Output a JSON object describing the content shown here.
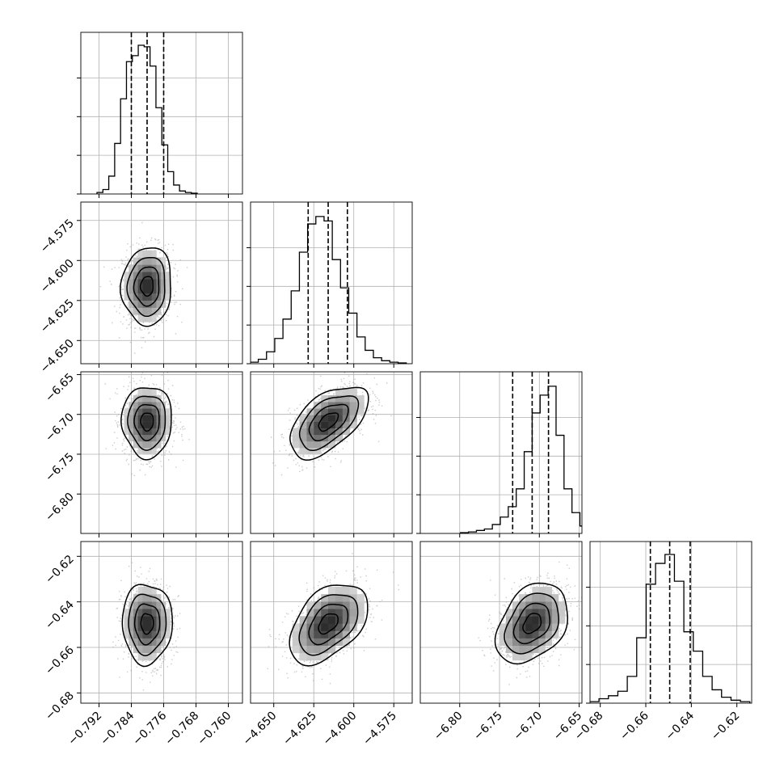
{
  "chart_data": {
    "type": "corner",
    "title": "",
    "n_params": 4,
    "params": [
      {
        "ticks": [
          -0.792,
          -0.784,
          -0.776,
          -0.768,
          -0.76
        ],
        "tick_labels": [
          "−0.792",
          "−0.784",
          "−0.776",
          "−0.768",
          "−0.760"
        ],
        "range": [
          -0.7965,
          -0.7565
        ],
        "quantiles": [
          -0.784,
          -0.7801,
          -0.776
        ],
        "mean": -0.7801,
        "sd": 0.0031,
        "hist_heights": [
          0.01,
          0.03,
          0.12,
          0.34,
          0.64,
          0.89,
          0.93,
          1.0,
          0.99,
          0.86,
          0.58,
          0.33,
          0.15,
          0.06,
          0.02,
          0.01,
          0.005
        ]
      },
      {
        "ticks": [
          -4.65,
          -4.625,
          -4.6,
          -4.575
        ],
        "tick_labels": [
          "−4.650",
          "−4.625",
          "−4.600",
          "−4.575"
        ],
        "range": [
          -4.6645,
          -4.5635
        ],
        "quantiles": [
          -4.6285,
          -4.616,
          -4.604
        ],
        "mean": -4.616,
        "sd": 0.0122,
        "hist_heights": [
          0.01,
          0.03,
          0.08,
          0.17,
          0.3,
          0.49,
          0.75,
          0.94,
          0.99,
          0.96,
          0.7,
          0.51,
          0.34,
          0.18,
          0.09,
          0.04,
          0.02,
          0.01,
          0.005
        ]
      },
      {
        "ticks": [
          -6.8,
          -6.75,
          -6.7,
          -6.65
        ],
        "tick_labels": [
          "−6.80",
          "−6.75",
          "−6.70",
          "−6.65"
        ],
        "range": [
          -6.8495,
          -6.6465
        ],
        "quantiles": [
          -6.7335,
          -6.709,
          -6.6885
        ],
        "mean": -6.709,
        "sd": 0.0225,
        "hist_heights": [
          0.005,
          0.01,
          0.02,
          0.03,
          0.06,
          0.11,
          0.18,
          0.3,
          0.55,
          0.81,
          0.93,
          0.99,
          0.66,
          0.3,
          0.14,
          0.05,
          0.02,
          0.005
        ]
      },
      {
        "ticks": [
          -0.68,
          -0.66,
          -0.64,
          -0.62
        ],
        "tick_labels": [
          "−0.68",
          "−0.66",
          "−0.64",
          "−0.62"
        ],
        "range": [
          -0.6845,
          -0.6135
        ],
        "quantiles": [
          -0.658,
          -0.6495,
          -0.6405
        ],
        "mean": -0.6495,
        "sd": 0.0088,
        "hist_heights": [
          0.01,
          0.03,
          0.05,
          0.08,
          0.18,
          0.44,
          0.8,
          0.94,
          1.0,
          0.82,
          0.48,
          0.35,
          0.18,
          0.09,
          0.04,
          0.02,
          0.01
        ]
      }
    ],
    "correlations": [
      [
        1.0,
        0.05,
        0.0,
        0.0
      ],
      [
        0.05,
        1.0,
        0.55,
        0.45
      ],
      [
        0.0,
        0.55,
        1.0,
        0.35
      ],
      [
        0.0,
        0.45,
        0.35,
        1.0
      ]
    ],
    "contour_levels": [
      0.5,
      1.0,
      1.5,
      2.0
    ],
    "colors": {
      "frame": "#000000",
      "grid": "#b0b0b0",
      "scatter": "#9a9a9a",
      "contour": "#000000",
      "hist": "#000000",
      "quantile": "#000000"
    },
    "grid": true
  }
}
